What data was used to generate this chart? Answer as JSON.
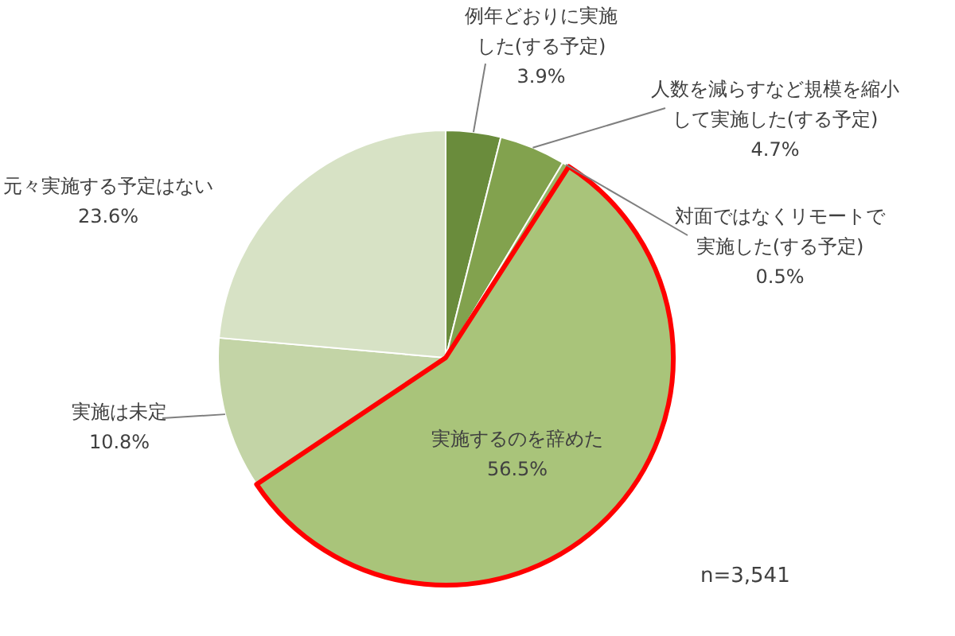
{
  "chart_data": {
    "type": "pie",
    "categories": [
      "例年どおりに実施した(する予定)",
      "人数を減らすなど規模を縮小して実施した(する予定)",
      "対面ではなくリモートで実施した(する予定)",
      "実施するのを辞めた",
      "実施は未定",
      "元々実施する予定はない"
    ],
    "values": [
      3.9,
      4.7,
      0.5,
      56.5,
      10.8,
      23.6
    ],
    "value_labels": [
      "3.9%",
      "4.7%",
      "0.5%",
      "56.5%",
      "10.8%",
      "23.6%"
    ],
    "colors": [
      "#6a8c3c",
      "#82a24e",
      "#97b565",
      "#a9c47a",
      "#c3d4a6",
      "#d7e2c5"
    ],
    "annotations": [
      "n=3,541"
    ]
  }
}
